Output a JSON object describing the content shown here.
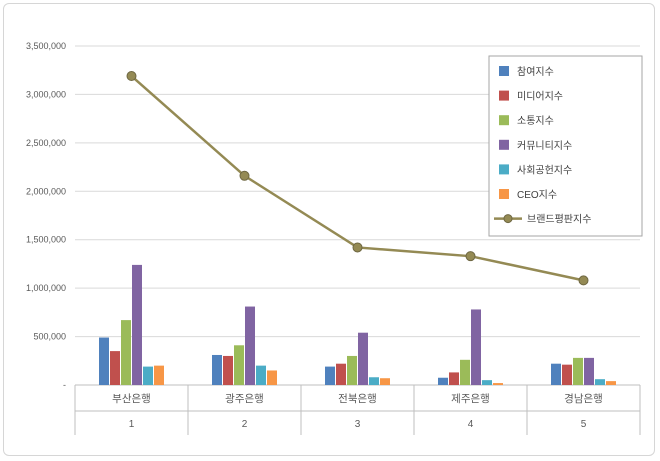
{
  "chart_data": {
    "type": "bar",
    "title": "",
    "categories": [
      "부산은행",
      "광주은행",
      "전북은행",
      "제주은행",
      "경남은행"
    ],
    "category_numbers": [
      "1",
      "2",
      "3",
      "4",
      "5"
    ],
    "series": [
      {
        "name": "참여지수",
        "type": "bar",
        "color": "#4F81BD",
        "values": [
          490000,
          310000,
          190000,
          75000,
          220000
        ]
      },
      {
        "name": "미디어지수",
        "type": "bar",
        "color": "#C0504D",
        "values": [
          350000,
          300000,
          220000,
          130000,
          210000
        ]
      },
      {
        "name": "소통지수",
        "type": "bar",
        "color": "#9BBB59",
        "values": [
          670000,
          410000,
          300000,
          260000,
          280000
        ]
      },
      {
        "name": "커뮤니티지수",
        "type": "bar",
        "color": "#8064A2",
        "values": [
          1240000,
          810000,
          540000,
          780000,
          280000
        ]
      },
      {
        "name": "사회공헌지수",
        "type": "bar",
        "color": "#4BACC6",
        "values": [
          190000,
          200000,
          80000,
          50000,
          60000
        ]
      },
      {
        "name": "CEO지수",
        "type": "bar",
        "color": "#F79646",
        "values": [
          200000,
          150000,
          70000,
          20000,
          40000
        ]
      },
      {
        "name": "브랜드평판지수",
        "type": "line",
        "color": "#948A54",
        "values": [
          3190000,
          2160000,
          1420000,
          1330000,
          1080000
        ]
      }
    ],
    "ylim": [
      0,
      3500000
    ],
    "ytick_step": 500000,
    "ytick_labels": [
      "-",
      "500,000",
      "1,000,000",
      "1,500,000",
      "2,000,000",
      "2,500,000",
      "3,000,000",
      "3,500,000"
    ],
    "grid": true,
    "legend_position": "top-right",
    "colors": {
      "gridline": "#D9D9D9",
      "axis": "#BFBFBF",
      "tick_text": "#595959",
      "legend_border": "#A6A6A6",
      "legend_text": "#404040",
      "marker_stroke": "#6E6742"
    }
  }
}
